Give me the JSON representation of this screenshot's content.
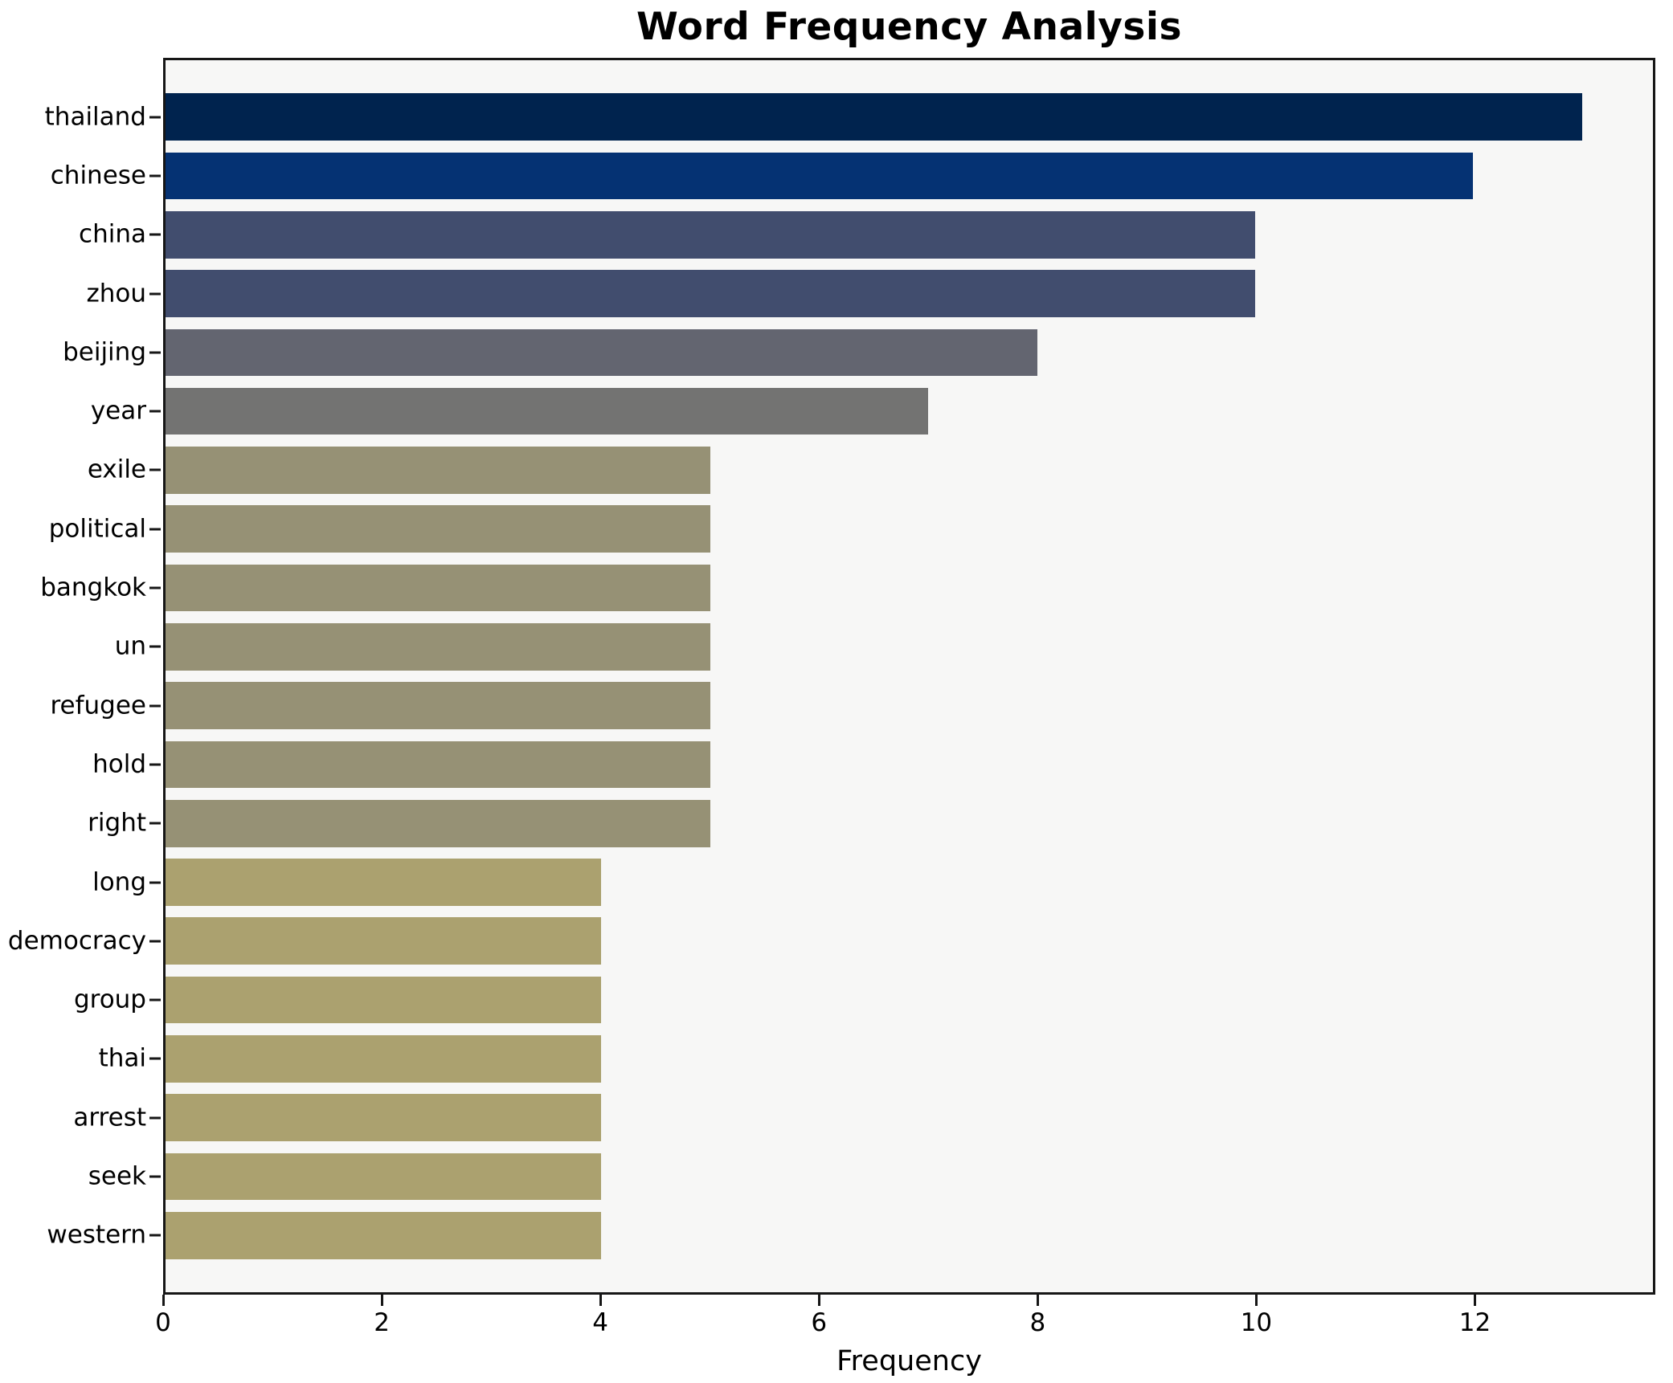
{
  "chart_data": {
    "type": "bar",
    "orientation": "horizontal",
    "title": "Word Frequency Analysis",
    "xlabel": "Frequency",
    "ylabel": "",
    "categories": [
      "thailand",
      "chinese",
      "china",
      "zhou",
      "beijing",
      "year",
      "exile",
      "political",
      "bangkok",
      "un",
      "refugee",
      "hold",
      "right",
      "long",
      "democracy",
      "group",
      "thai",
      "arrest",
      "seek",
      "western"
    ],
    "values": [
      13,
      12,
      10,
      10,
      8,
      7,
      5,
      5,
      5,
      5,
      5,
      5,
      5,
      4,
      4,
      4,
      4,
      4,
      4,
      4
    ],
    "bar_colors": [
      "#00234e",
      "#053273",
      "#414d6e",
      "#414d6e",
      "#636570",
      "#737372",
      "#969175",
      "#969175",
      "#969175",
      "#969175",
      "#969175",
      "#969175",
      "#969175",
      "#aba16f",
      "#aba16f",
      "#aba16f",
      "#aba16f",
      "#aba16f",
      "#aba16f",
      "#aba16f"
    ],
    "xlim": [
      0,
      13.65
    ],
    "xticks": [
      0,
      2,
      4,
      6,
      8,
      10,
      12
    ],
    "grid": false,
    "legend": null,
    "plot_background": "#f7f7f6",
    "figure_background": "#ffffff",
    "spine_color": "#161616",
    "text_color": "#000000"
  }
}
